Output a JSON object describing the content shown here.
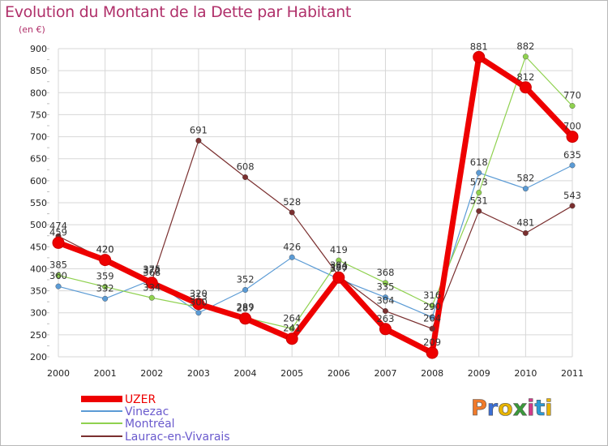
{
  "title": "Evolution du Montant de la Dette par Habitant",
  "unit": "(en €)",
  "logo": {
    "text": "Proxiti",
    "colors": [
      "#f07a2a",
      "#3b6fd6",
      "#e8b400",
      "#3a9a3a",
      "#d23a8a",
      "#2a9ad6",
      "#e8b400"
    ]
  },
  "chart_data": {
    "type": "line",
    "title": "Evolution du Montant de la Dette par Habitant",
    "ylabel": "(en €)",
    "xlabel": "",
    "ylim": [
      200,
      900
    ],
    "yticks": [
      200,
      250,
      300,
      350,
      400,
      450,
      500,
      550,
      600,
      650,
      700,
      750,
      800,
      850,
      900
    ],
    "categories": [
      "2000",
      "2001",
      "2002",
      "2003",
      "2004",
      "2005",
      "2006",
      "2007",
      "2008",
      "2009",
      "2010",
      "2011"
    ],
    "grid": true,
    "series": [
      {
        "name": "UZER",
        "color": "#ee0000",
        "values": [
          459,
          420,
          368,
          320,
          287,
          241,
          380,
          263,
          209,
          881,
          812,
          700
        ],
        "width": 7,
        "marker": 7
      },
      {
        "name": "Vinezac",
        "color": "#5b9bd5",
        "values": [
          360,
          332,
          375,
          300,
          352,
          426,
          377,
          335,
          290,
          618,
          582,
          635
        ],
        "width": 1.2,
        "marker": 3.3
      },
      {
        "name": "Montréal",
        "color": "#8fd14f",
        "values": [
          385,
          359,
          334,
          313,
          289,
          264,
          419,
          368,
          316,
          573,
          882,
          770
        ],
        "width": 1.2,
        "marker": 3.3
      },
      {
        "name": "Laurac-en-Vivarais",
        "color": "#7a2f2f",
        "values": [
          474,
          420,
          372,
          691,
          608,
          528,
          384,
          304,
          264,
          531,
          481,
          543
        ],
        "width": 1.2,
        "marker": 3.3
      }
    ]
  }
}
